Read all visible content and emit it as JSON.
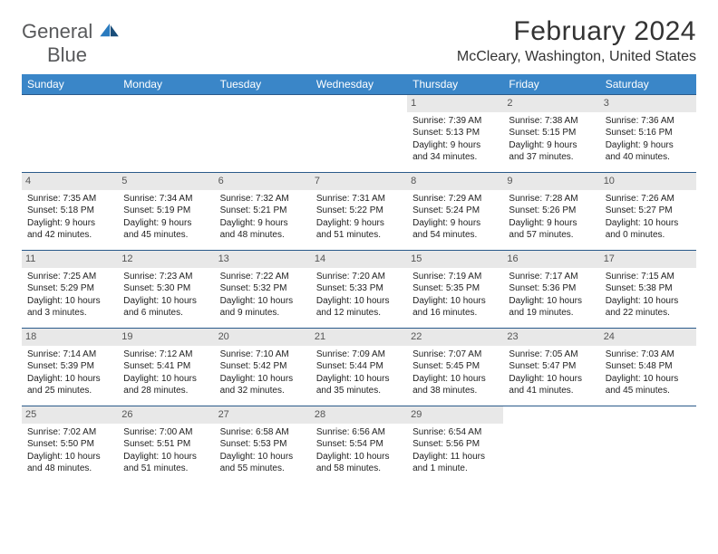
{
  "brand": {
    "part1": "General",
    "part2": "Blue"
  },
  "title": "February 2024",
  "location": "McCleary, Washington, United States",
  "colors": {
    "header_bg": "#3a86c8",
    "header_fg": "#ffffff",
    "row_border": "#2a5a8a",
    "daynum_bg": "#e8e8e8",
    "daynum_fg": "#555555",
    "logo_gray": "#58595b",
    "logo_blue": "#2a7bbf"
  },
  "weekdays": [
    "Sunday",
    "Monday",
    "Tuesday",
    "Wednesday",
    "Thursday",
    "Friday",
    "Saturday"
  ],
  "weeks": [
    [
      null,
      null,
      null,
      null,
      {
        "n": "1",
        "sr": "Sunrise: 7:39 AM",
        "ss": "Sunset: 5:13 PM",
        "d1": "Daylight: 9 hours",
        "d2": "and 34 minutes."
      },
      {
        "n": "2",
        "sr": "Sunrise: 7:38 AM",
        "ss": "Sunset: 5:15 PM",
        "d1": "Daylight: 9 hours",
        "d2": "and 37 minutes."
      },
      {
        "n": "3",
        "sr": "Sunrise: 7:36 AM",
        "ss": "Sunset: 5:16 PM",
        "d1": "Daylight: 9 hours",
        "d2": "and 40 minutes."
      }
    ],
    [
      {
        "n": "4",
        "sr": "Sunrise: 7:35 AM",
        "ss": "Sunset: 5:18 PM",
        "d1": "Daylight: 9 hours",
        "d2": "and 42 minutes."
      },
      {
        "n": "5",
        "sr": "Sunrise: 7:34 AM",
        "ss": "Sunset: 5:19 PM",
        "d1": "Daylight: 9 hours",
        "d2": "and 45 minutes."
      },
      {
        "n": "6",
        "sr": "Sunrise: 7:32 AM",
        "ss": "Sunset: 5:21 PM",
        "d1": "Daylight: 9 hours",
        "d2": "and 48 minutes."
      },
      {
        "n": "7",
        "sr": "Sunrise: 7:31 AM",
        "ss": "Sunset: 5:22 PM",
        "d1": "Daylight: 9 hours",
        "d2": "and 51 minutes."
      },
      {
        "n": "8",
        "sr": "Sunrise: 7:29 AM",
        "ss": "Sunset: 5:24 PM",
        "d1": "Daylight: 9 hours",
        "d2": "and 54 minutes."
      },
      {
        "n": "9",
        "sr": "Sunrise: 7:28 AM",
        "ss": "Sunset: 5:26 PM",
        "d1": "Daylight: 9 hours",
        "d2": "and 57 minutes."
      },
      {
        "n": "10",
        "sr": "Sunrise: 7:26 AM",
        "ss": "Sunset: 5:27 PM",
        "d1": "Daylight: 10 hours",
        "d2": "and 0 minutes."
      }
    ],
    [
      {
        "n": "11",
        "sr": "Sunrise: 7:25 AM",
        "ss": "Sunset: 5:29 PM",
        "d1": "Daylight: 10 hours",
        "d2": "and 3 minutes."
      },
      {
        "n": "12",
        "sr": "Sunrise: 7:23 AM",
        "ss": "Sunset: 5:30 PM",
        "d1": "Daylight: 10 hours",
        "d2": "and 6 minutes."
      },
      {
        "n": "13",
        "sr": "Sunrise: 7:22 AM",
        "ss": "Sunset: 5:32 PM",
        "d1": "Daylight: 10 hours",
        "d2": "and 9 minutes."
      },
      {
        "n": "14",
        "sr": "Sunrise: 7:20 AM",
        "ss": "Sunset: 5:33 PM",
        "d1": "Daylight: 10 hours",
        "d2": "and 12 minutes."
      },
      {
        "n": "15",
        "sr": "Sunrise: 7:19 AM",
        "ss": "Sunset: 5:35 PM",
        "d1": "Daylight: 10 hours",
        "d2": "and 16 minutes."
      },
      {
        "n": "16",
        "sr": "Sunrise: 7:17 AM",
        "ss": "Sunset: 5:36 PM",
        "d1": "Daylight: 10 hours",
        "d2": "and 19 minutes."
      },
      {
        "n": "17",
        "sr": "Sunrise: 7:15 AM",
        "ss": "Sunset: 5:38 PM",
        "d1": "Daylight: 10 hours",
        "d2": "and 22 minutes."
      }
    ],
    [
      {
        "n": "18",
        "sr": "Sunrise: 7:14 AM",
        "ss": "Sunset: 5:39 PM",
        "d1": "Daylight: 10 hours",
        "d2": "and 25 minutes."
      },
      {
        "n": "19",
        "sr": "Sunrise: 7:12 AM",
        "ss": "Sunset: 5:41 PM",
        "d1": "Daylight: 10 hours",
        "d2": "and 28 minutes."
      },
      {
        "n": "20",
        "sr": "Sunrise: 7:10 AM",
        "ss": "Sunset: 5:42 PM",
        "d1": "Daylight: 10 hours",
        "d2": "and 32 minutes."
      },
      {
        "n": "21",
        "sr": "Sunrise: 7:09 AM",
        "ss": "Sunset: 5:44 PM",
        "d1": "Daylight: 10 hours",
        "d2": "and 35 minutes."
      },
      {
        "n": "22",
        "sr": "Sunrise: 7:07 AM",
        "ss": "Sunset: 5:45 PM",
        "d1": "Daylight: 10 hours",
        "d2": "and 38 minutes."
      },
      {
        "n": "23",
        "sr": "Sunrise: 7:05 AM",
        "ss": "Sunset: 5:47 PM",
        "d1": "Daylight: 10 hours",
        "d2": "and 41 minutes."
      },
      {
        "n": "24",
        "sr": "Sunrise: 7:03 AM",
        "ss": "Sunset: 5:48 PM",
        "d1": "Daylight: 10 hours",
        "d2": "and 45 minutes."
      }
    ],
    [
      {
        "n": "25",
        "sr": "Sunrise: 7:02 AM",
        "ss": "Sunset: 5:50 PM",
        "d1": "Daylight: 10 hours",
        "d2": "and 48 minutes."
      },
      {
        "n": "26",
        "sr": "Sunrise: 7:00 AM",
        "ss": "Sunset: 5:51 PM",
        "d1": "Daylight: 10 hours",
        "d2": "and 51 minutes."
      },
      {
        "n": "27",
        "sr": "Sunrise: 6:58 AM",
        "ss": "Sunset: 5:53 PM",
        "d1": "Daylight: 10 hours",
        "d2": "and 55 minutes."
      },
      {
        "n": "28",
        "sr": "Sunrise: 6:56 AM",
        "ss": "Sunset: 5:54 PM",
        "d1": "Daylight: 10 hours",
        "d2": "and 58 minutes."
      },
      {
        "n": "29",
        "sr": "Sunrise: 6:54 AM",
        "ss": "Sunset: 5:56 PM",
        "d1": "Daylight: 11 hours",
        "d2": "and 1 minute."
      },
      null,
      null
    ]
  ]
}
